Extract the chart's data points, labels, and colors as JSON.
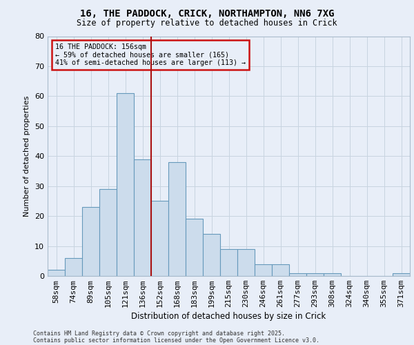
{
  "title_line1": "16, THE PADDOCK, CRICK, NORTHAMPTON, NN6 7XG",
  "title_line2": "Size of property relative to detached houses in Crick",
  "xlabel": "Distribution of detached houses by size in Crick",
  "ylabel": "Number of detached properties",
  "bin_labels": [
    "58sqm",
    "74sqm",
    "89sqm",
    "105sqm",
    "121sqm",
    "136sqm",
    "152sqm",
    "168sqm",
    "183sqm",
    "199sqm",
    "215sqm",
    "230sqm",
    "246sqm",
    "261sqm",
    "277sqm",
    "293sqm",
    "308sqm",
    "324sqm",
    "340sqm",
    "355sqm",
    "371sqm"
  ],
  "bar_heights": [
    2,
    6,
    23,
    29,
    61,
    39,
    25,
    38,
    19,
    14,
    9,
    9,
    4,
    4,
    1,
    1,
    1,
    0,
    0,
    0,
    1
  ],
  "bar_color": "#ccdcec",
  "bar_edge_color": "#6699bb",
  "grid_color": "#c8d4e0",
  "background_color": "#e8eef8",
  "vline_color": "#aa1111",
  "vline_x": 5.5,
  "annotation_line1": "16 THE PADDOCK: 156sqm",
  "annotation_line2": "← 59% of detached houses are smaller (165)",
  "annotation_line3": "41% of semi-detached houses are larger (113) →",
  "annotation_box_edgecolor": "#cc1111",
  "footnote_line1": "Contains HM Land Registry data © Crown copyright and database right 2025.",
  "footnote_line2": "Contains public sector information licensed under the Open Government Licence v3.0.",
  "ylim_max": 80,
  "yticks": [
    0,
    10,
    20,
    30,
    40,
    50,
    60,
    70,
    80
  ]
}
